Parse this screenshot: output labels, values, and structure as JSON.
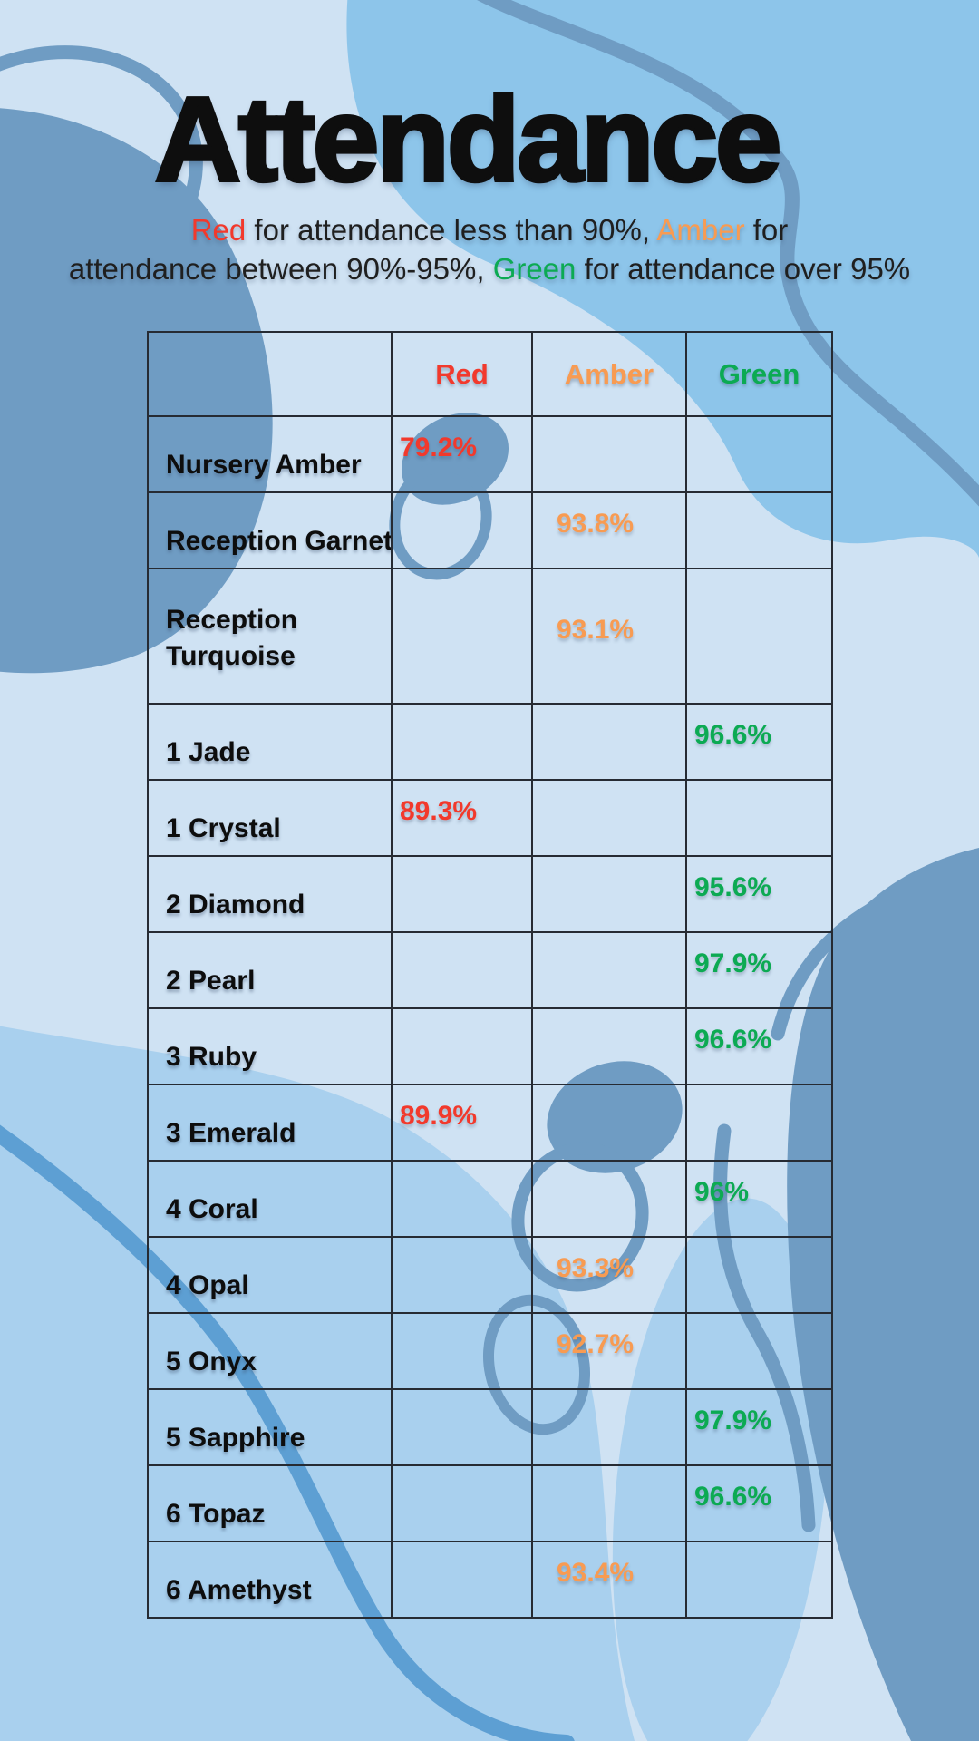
{
  "title": "Attendance",
  "subtitle": {
    "segments": [
      {
        "text": "Red",
        "color": "red"
      },
      {
        "text": " for attendance less than 90%, ",
        "color": "default"
      },
      {
        "text": "Amber",
        "color": "amber"
      },
      {
        "text": " for\nattendance between 90%-95%, ",
        "color": "default"
      },
      {
        "text": "Green",
        "color": "green"
      },
      {
        "text": " for attendance over 95%",
        "color": "default"
      }
    ]
  },
  "palette": {
    "background": "#cfe2f3",
    "blob_medium": "#8dc5ea",
    "blob_light_medium": "#a9d0ee",
    "blob_slate": "#6f9cc3",
    "stroke_blue": "#5d9fd3",
    "table_border": "#262b33",
    "ink": "#0e0e0e",
    "red": "#f2392c",
    "amber": "#f89b52",
    "green": "#0caa53"
  },
  "table": {
    "columns": [
      "",
      "Red",
      "Amber",
      "Green"
    ],
    "rows": [
      {
        "label": "Nursery Amber",
        "value": "79.2%",
        "band": "red"
      },
      {
        "label": "Reception Garnet",
        "value": "93.8%",
        "band": "amber"
      },
      {
        "label": "Reception Turquoise",
        "value": "93.1%",
        "band": "amber",
        "tall": true
      },
      {
        "label": "1 Jade",
        "value": "96.6%",
        "band": "green"
      },
      {
        "label": "1 Crystal",
        "value": "89.3%",
        "band": "red"
      },
      {
        "label": "2 Diamond",
        "value": "95.6%",
        "band": "green"
      },
      {
        "label": "2 Pearl",
        "value": "97.9%",
        "band": "green"
      },
      {
        "label": "3 Ruby",
        "value": "96.6%",
        "band": "green"
      },
      {
        "label": "3 Emerald",
        "value": "89.9%",
        "band": "red"
      },
      {
        "label": "4 Coral",
        "value": "96%",
        "band": "green"
      },
      {
        "label": "4 Opal",
        "value": "93.3%",
        "band": "amber"
      },
      {
        "label": "5 Onyx",
        "value": "92.7%",
        "band": "amber"
      },
      {
        "label": "5 Sapphire",
        "value": "97.9%",
        "band": "green"
      },
      {
        "label": "6 Topaz",
        "value": "96.6%",
        "band": "green"
      },
      {
        "label": "6 Amethyst",
        "value": "93.4%",
        "band": "amber"
      }
    ]
  }
}
